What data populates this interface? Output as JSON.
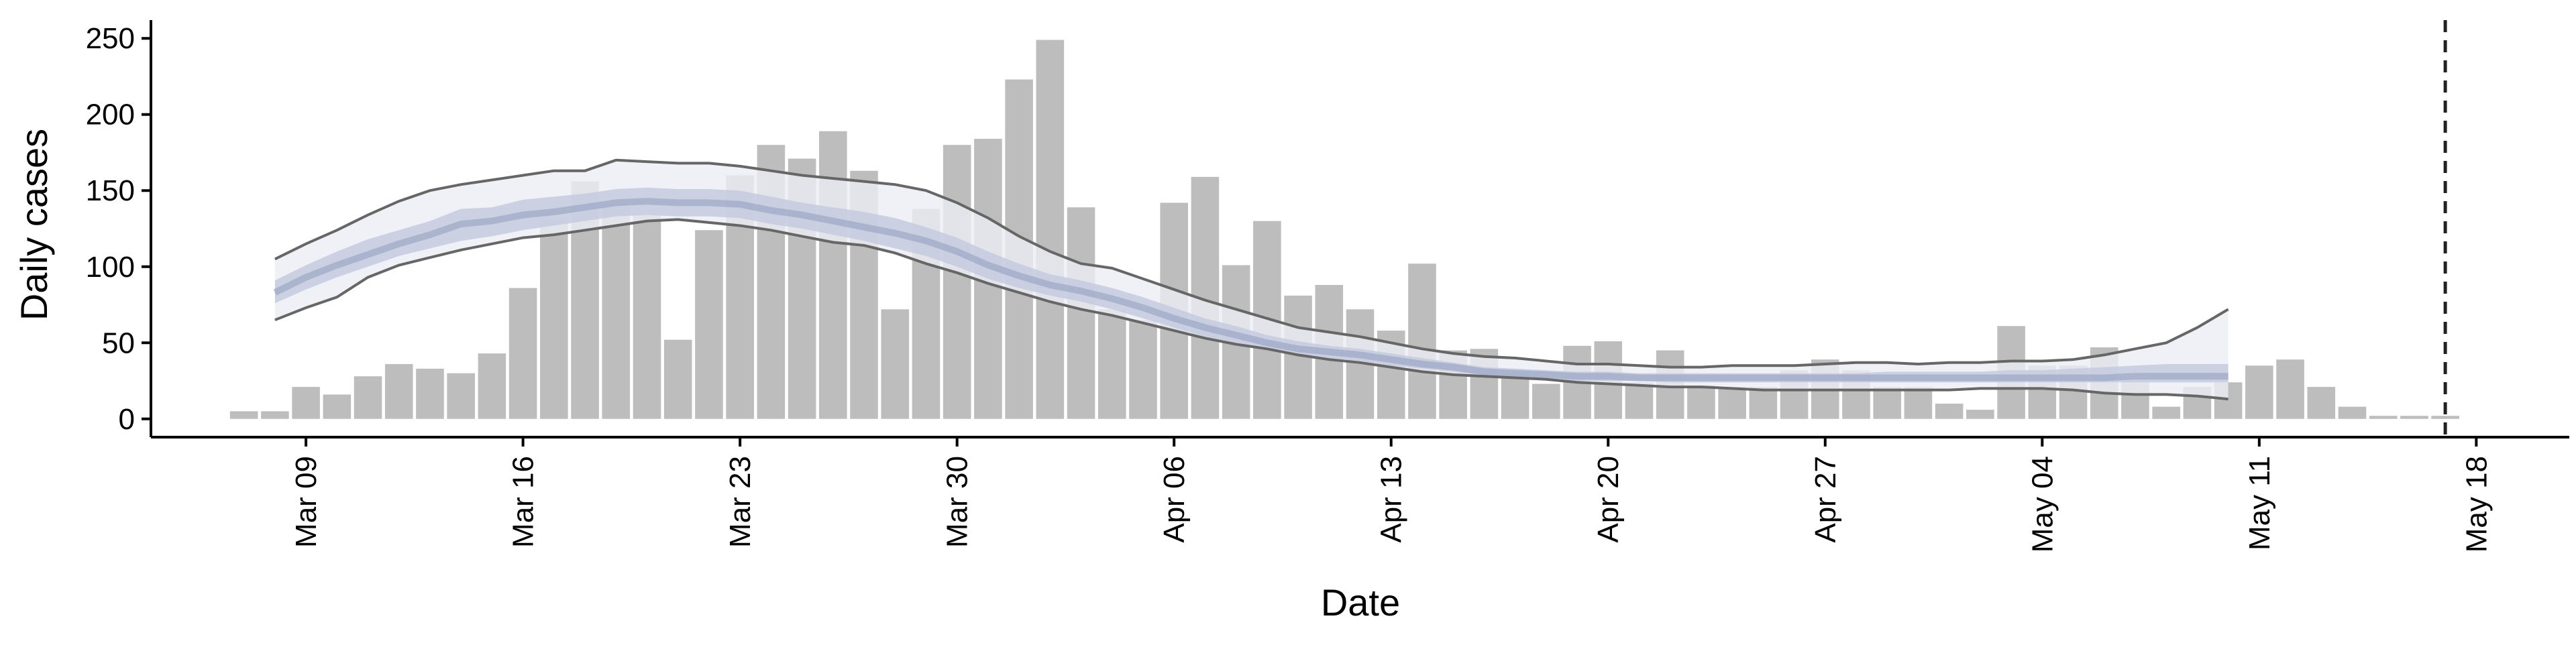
{
  "chart_data": {
    "type": "bar",
    "xlabel": "Date",
    "ylabel": "Daily cases",
    "x_tick_labels": [
      "Mar 09",
      "Mar 16",
      "Mar 23",
      "Mar 30",
      "Apr 06",
      "Apr 13",
      "Apr 20",
      "Apr 27",
      "May 04",
      "May 11",
      "May 18"
    ],
    "x_tick_dates": [
      "2020-03-09",
      "2020-03-16",
      "2020-03-23",
      "2020-03-30",
      "2020-04-06",
      "2020-04-13",
      "2020-04-20",
      "2020-04-27",
      "2020-05-04",
      "2020-05-11",
      "2020-05-18"
    ],
    "y_ticks": [
      0,
      50,
      100,
      150,
      200,
      250
    ],
    "ylim": [
      -12,
      262
    ],
    "xlim": [
      "2020-03-04",
      "2020-05-21"
    ],
    "grid": false,
    "legend": "none",
    "vline_date": "2020-05-17",
    "colors": {
      "bars": "#bdbdbd",
      "band_outer": "#eceef5",
      "band_inner": "#c4cbdf",
      "band_median": "#9fa9c6",
      "bound_lines": "#666666",
      "vline": "#222222"
    },
    "series": [
      {
        "type": "bar",
        "dates": [
          "2020-03-07",
          "2020-03-08",
          "2020-03-09",
          "2020-03-10",
          "2020-03-11",
          "2020-03-12",
          "2020-03-13",
          "2020-03-14",
          "2020-03-15",
          "2020-03-16",
          "2020-03-17",
          "2020-03-18",
          "2020-03-19",
          "2020-03-20",
          "2020-03-21",
          "2020-03-22",
          "2020-03-23",
          "2020-03-24",
          "2020-03-25",
          "2020-03-26",
          "2020-03-27",
          "2020-03-28",
          "2020-03-29",
          "2020-03-30",
          "2020-03-31",
          "2020-04-01",
          "2020-04-02",
          "2020-04-03",
          "2020-04-04",
          "2020-04-05",
          "2020-04-06",
          "2020-04-07",
          "2020-04-08",
          "2020-04-09",
          "2020-04-10",
          "2020-04-11",
          "2020-04-12",
          "2020-04-13",
          "2020-04-14",
          "2020-04-15",
          "2020-04-16",
          "2020-04-17",
          "2020-04-18",
          "2020-04-19",
          "2020-04-20",
          "2020-04-21",
          "2020-04-22",
          "2020-04-23",
          "2020-04-24",
          "2020-04-25",
          "2020-04-26",
          "2020-04-27",
          "2020-04-28",
          "2020-04-29",
          "2020-04-30",
          "2020-05-01",
          "2020-05-02",
          "2020-05-03",
          "2020-05-04",
          "2020-05-05",
          "2020-05-06",
          "2020-05-07",
          "2020-05-08",
          "2020-05-09",
          "2020-05-10",
          "2020-05-11",
          "2020-05-12",
          "2020-05-13",
          "2020-05-14",
          "2020-05-15",
          "2020-05-16",
          "2020-05-17"
        ],
        "values": [
          5,
          5,
          21,
          16,
          28,
          36,
          33,
          30,
          43,
          86,
          131,
          156,
          142,
          134,
          52,
          124,
          160,
          180,
          171,
          189,
          163,
          72,
          138,
          180,
          184,
          223,
          249,
          139,
          72,
          65,
          142,
          159,
          101,
          130,
          81,
          88,
          72,
          58,
          102,
          45,
          46,
          30,
          23,
          48,
          51,
          24,
          45,
          22,
          21,
          21,
          32,
          39,
          32,
          21,
          21,
          10,
          6,
          61,
          35,
          35,
          47,
          25,
          8,
          21,
          24,
          35,
          39,
          21,
          8,
          2,
          2,
          2
        ]
      },
      {
        "type": "band",
        "dates": [
          "2020-03-08",
          "2020-03-09",
          "2020-03-10",
          "2020-03-11",
          "2020-03-12",
          "2020-03-13",
          "2020-03-14",
          "2020-03-15",
          "2020-03-16",
          "2020-03-17",
          "2020-03-18",
          "2020-03-19",
          "2020-03-20",
          "2020-03-21",
          "2020-03-22",
          "2020-03-23",
          "2020-03-24",
          "2020-03-25",
          "2020-03-26",
          "2020-03-27",
          "2020-03-28",
          "2020-03-29",
          "2020-03-30",
          "2020-03-31",
          "2020-04-01",
          "2020-04-02",
          "2020-04-03",
          "2020-04-04",
          "2020-04-05",
          "2020-04-06",
          "2020-04-07",
          "2020-04-08",
          "2020-04-09",
          "2020-04-10",
          "2020-04-11",
          "2020-04-12",
          "2020-04-13",
          "2020-04-14",
          "2020-04-15",
          "2020-04-16",
          "2020-04-17",
          "2020-04-18",
          "2020-04-19",
          "2020-04-20",
          "2020-04-21",
          "2020-04-22",
          "2020-04-23",
          "2020-04-24",
          "2020-04-25",
          "2020-04-26",
          "2020-04-27",
          "2020-04-28",
          "2020-04-29",
          "2020-04-30",
          "2020-05-01",
          "2020-05-02",
          "2020-05-03",
          "2020-05-04",
          "2020-05-05",
          "2020-05-06",
          "2020-05-07",
          "2020-05-08",
          "2020-05-09",
          "2020-05-10"
        ],
        "upper90": [
          105,
          115,
          124,
          134,
          143,
          150,
          154,
          157,
          160,
          163,
          163,
          170,
          169,
          168,
          168,
          166,
          163,
          160,
          158,
          156,
          154,
          150,
          142,
          132,
          120,
          110,
          102,
          99,
          92,
          85,
          78,
          72,
          66,
          60,
          57,
          54,
          50,
          46,
          43,
          41,
          40,
          38,
          36,
          36,
          35,
          34,
          34,
          35,
          35,
          35,
          36,
          37,
          37,
          36,
          37,
          37,
          38,
          38,
          39,
          42,
          46,
          50,
          60,
          72
        ],
        "upper50": [
          91,
          101,
          110,
          118,
          124,
          130,
          138,
          139,
          144,
          146,
          148,
          151,
          152,
          151,
          151,
          150,
          146,
          142,
          139,
          136,
          132,
          126,
          119,
          110,
          102,
          95,
          91,
          86,
          80,
          73,
          66,
          61,
          55,
          51,
          48,
          46,
          43,
          40,
          37,
          34,
          33,
          32,
          31,
          31,
          30,
          30,
          30,
          30,
          30,
          30,
          30,
          30,
          31,
          31,
          31,
          31,
          32,
          32,
          33,
          34,
          35,
          36,
          36,
          36
        ],
        "median": [
          83,
          93,
          101,
          108,
          115,
          121,
          128,
          130,
          134,
          136,
          139,
          142,
          143,
          142,
          142,
          141,
          137,
          134,
          130,
          126,
          122,
          117,
          110,
          101,
          94,
          88,
          84,
          79,
          73,
          66,
          60,
          55,
          50,
          46,
          44,
          42,
          39,
          36,
          34,
          31,
          30,
          29,
          28,
          28,
          27,
          27,
          27,
          27,
          27,
          27,
          27,
          27,
          27,
          27,
          27,
          27,
          27,
          27,
          27,
          27,
          28,
          28,
          28,
          28
        ],
        "lower50": [
          76,
          85,
          93,
          100,
          107,
          112,
          117,
          120,
          124,
          127,
          130,
          133,
          134,
          133,
          133,
          132,
          128,
          125,
          121,
          117,
          112,
          107,
          100,
          92,
          86,
          81,
          77,
          72,
          66,
          60,
          54,
          50,
          46,
          42,
          40,
          38,
          35,
          33,
          31,
          28,
          27,
          26,
          25,
          25,
          25,
          24,
          24,
          24,
          24,
          24,
          24,
          24,
          24,
          24,
          24,
          24,
          24,
          24,
          24,
          24,
          24,
          24,
          24,
          24
        ],
        "lower90": [
          65,
          73,
          80,
          93,
          101,
          106,
          111,
          115,
          119,
          121,
          124,
          127,
          130,
          131,
          129,
          127,
          124,
          120,
          116,
          114,
          109,
          102,
          96,
          89,
          83,
          77,
          72,
          68,
          63,
          58,
          53,
          49,
          46,
          42,
          39,
          37,
          34,
          31,
          29,
          28,
          27,
          26,
          24,
          23,
          22,
          21,
          21,
          20,
          19,
          19,
          19,
          19,
          19,
          19,
          19,
          20,
          20,
          20,
          19,
          17,
          16,
          16,
          15,
          13
        ]
      }
    ]
  }
}
